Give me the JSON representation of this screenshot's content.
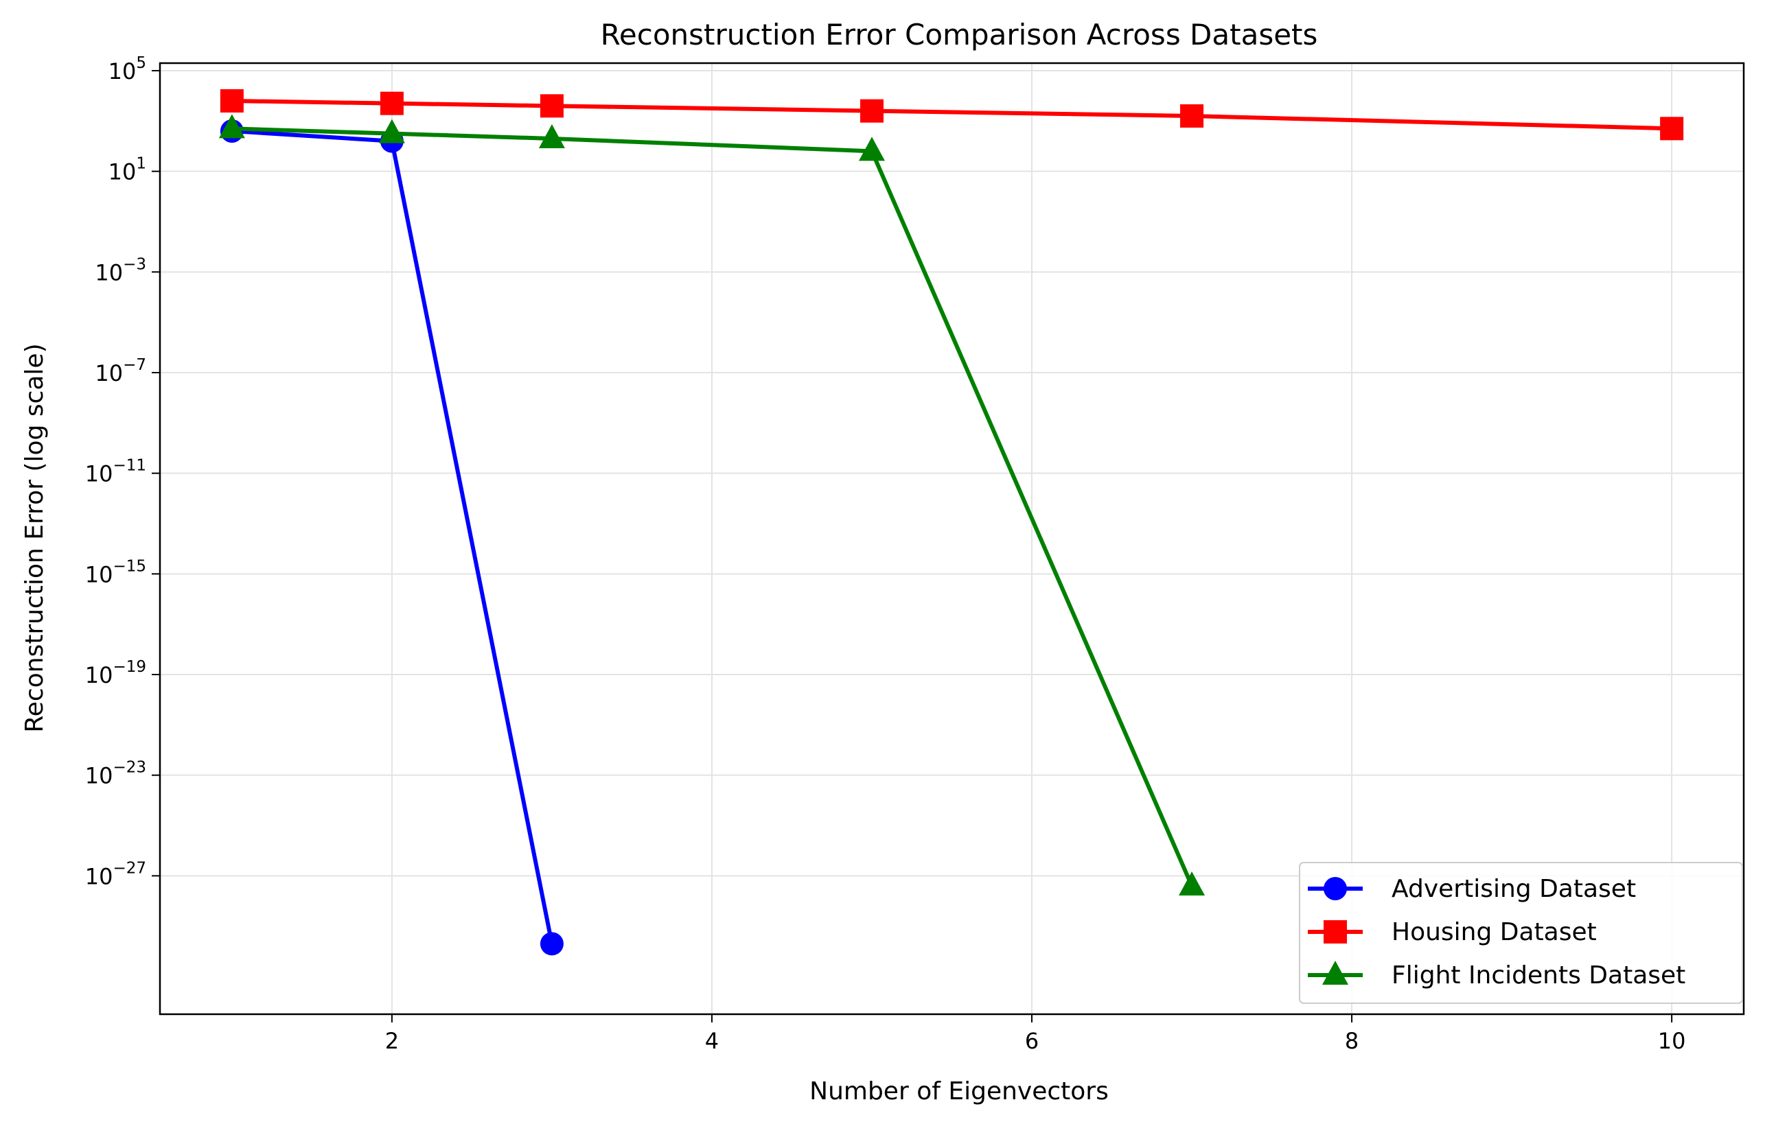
{
  "chart_data": {
    "type": "line",
    "title": "Reconstruction Error Comparison Across Datasets",
    "xlabel": "Number of Eigenvectors",
    "ylabel": "Reconstruction Error (log scale)",
    "xlim": [
      0.55,
      10.45
    ],
    "ylim_log10": [
      -32.5,
      5.3
    ],
    "yscale": "log",
    "grid": true,
    "legend_position": "lower-right",
    "x_ticks": [
      2,
      4,
      6,
      8,
      10
    ],
    "y_tick_exponents": [
      5,
      1,
      -3,
      -7,
      -11,
      -15,
      -19,
      -23,
      -27
    ],
    "series": [
      {
        "name": "Advertising Dataset",
        "color": "#0000ff",
        "marker": "circle",
        "x": [
          1,
          2,
          3
        ],
        "log10_y": [
          2.6,
          2.2,
          -29.7
        ]
      },
      {
        "name": "Housing Dataset",
        "color": "#ff0000",
        "marker": "square",
        "x": [
          1,
          2,
          3,
          5,
          7,
          10
        ],
        "log10_y": [
          3.8,
          3.7,
          3.6,
          3.4,
          3.2,
          2.7
        ]
      },
      {
        "name": "Flight Incidents Dataset",
        "color": "#008000",
        "marker": "triangle",
        "x": [
          1,
          2,
          3,
          5,
          7
        ],
        "log10_y": [
          2.7,
          2.5,
          2.3,
          1.8,
          -27.4
        ]
      }
    ]
  }
}
